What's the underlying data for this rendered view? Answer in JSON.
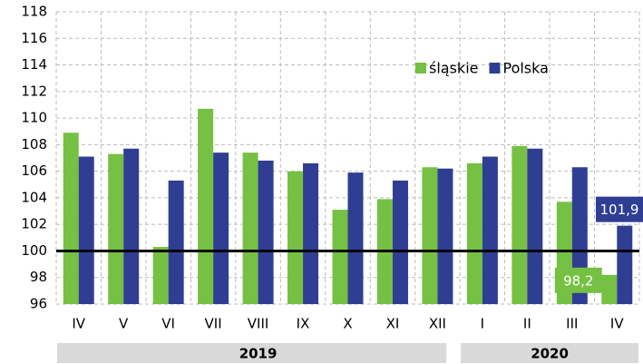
{
  "chart_data": {
    "type": "bar",
    "categories": [
      "IV",
      "V",
      "VI",
      "VII",
      "VIII",
      "IX",
      "X",
      "XI",
      "XII",
      "I",
      "II",
      "III",
      "IV"
    ],
    "groups": [
      {
        "label": "2019",
        "span": 9
      },
      {
        "label": "2020",
        "span": 4
      }
    ],
    "series": [
      {
        "name": "śląskie",
        "color": "#76c043",
        "values": [
          108.9,
          107.3,
          100.3,
          110.7,
          107.4,
          106.0,
          103.1,
          103.9,
          106.3,
          106.6,
          107.9,
          103.7,
          98.2
        ],
        "value_labels": [
          null,
          null,
          null,
          null,
          null,
          null,
          null,
          null,
          null,
          null,
          null,
          null,
          "98,2"
        ]
      },
      {
        "name": "Polska",
        "color": "#2f3e92",
        "values": [
          107.1,
          107.7,
          105.3,
          107.4,
          106.8,
          106.6,
          105.9,
          105.3,
          106.2,
          107.1,
          107.7,
          106.3,
          101.9
        ],
        "value_labels": [
          null,
          null,
          null,
          null,
          null,
          null,
          null,
          null,
          null,
          null,
          null,
          null,
          "101,9"
        ]
      }
    ],
    "reference_line": 100,
    "ylim": [
      96,
      118
    ],
    "yticks": [
      96,
      98,
      100,
      102,
      104,
      106,
      108,
      110,
      112,
      114,
      116,
      118
    ],
    "grid": true,
    "legend": "upper right"
  }
}
